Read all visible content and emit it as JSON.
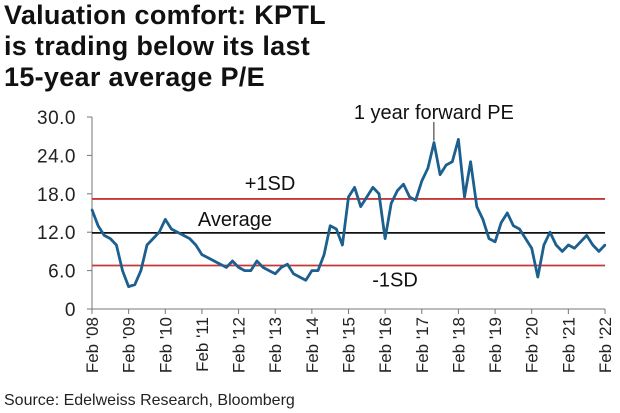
{
  "title_lines": [
    "Valuation comfort: KPTL",
    "is trading below its last",
    "15-year average P/E"
  ],
  "source": "Source: Edelweiss Research, Bloomberg",
  "chart_data": {
    "type": "line",
    "title": "Valuation comfort: KPTL is trading below its last 15-year average P/E",
    "xlabel": "",
    "ylabel": "",
    "ylim": [
      0,
      30
    ],
    "yticks": [
      0,
      6,
      12,
      18,
      24,
      30
    ],
    "ytick_labels": [
      "0",
      "6.0",
      "12.0",
      "18.0",
      "24.0",
      "30.0"
    ],
    "xticks": [
      "Feb '08",
      "Feb '09",
      "Feb '10",
      "Feb '11",
      "Feb '12",
      "Feb '13",
      "Feb '14",
      "Feb '15",
      "Feb '16",
      "Feb '17",
      "Feb '18",
      "Feb '19",
      "Feb '20",
      "Feb '21",
      "Feb '22"
    ],
    "x_start": "Feb 2008",
    "step_months": 2,
    "series": [
      {
        "name": "1 year forward PE",
        "color": "#1d5f8e",
        "values": [
          15.5,
          13,
          11.5,
          11,
          10,
          6,
          3.5,
          3.8,
          6,
          10,
          11,
          12,
          14,
          12.5,
          12,
          11.5,
          11,
          10,
          8.5,
          8,
          7.5,
          7,
          6.5,
          7.5,
          6.5,
          6,
          6,
          7.5,
          6.5,
          6,
          5.5,
          6.5,
          7,
          5.5,
          5,
          4.5,
          6,
          6,
          8.5,
          13,
          12.5,
          10,
          17.5,
          19,
          16,
          17.5,
          19,
          18,
          11,
          16.5,
          18.5,
          19.5,
          17.5,
          17,
          20,
          22,
          26,
          21,
          22.5,
          23,
          26.5,
          17.5,
          23,
          16,
          14,
          11,
          10.5,
          13.5,
          15,
          13,
          12.5,
          11,
          9.5,
          5,
          10,
          12,
          10,
          9,
          10,
          9.5,
          10.5,
          11.5,
          10,
          9,
          10
        ]
      }
    ],
    "reference_lines": [
      {
        "name": "+1SD",
        "value": 17.2,
        "color": "#c8363a"
      },
      {
        "name": "Average",
        "value": 11.9,
        "color": "#111111"
      },
      {
        "name": "-1SD",
        "value": 6.8,
        "color": "#c8363a"
      }
    ],
    "annotation": "1 year forward PE",
    "grid": false
  }
}
